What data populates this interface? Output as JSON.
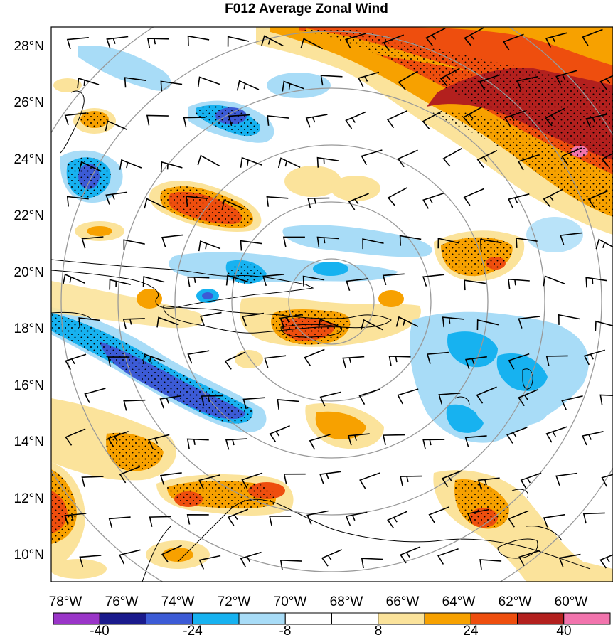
{
  "title": "F012 Average Zonal Wind",
  "lat_labels": [
    "10°N",
    "12°N",
    "14°N",
    "16°N",
    "18°N",
    "20°N",
    "22°N",
    "24°N",
    "26°N",
    "28°N"
  ],
  "lon_labels": [
    "78°W",
    "76°W",
    "74°W",
    "72°W",
    "70°W",
    "68°W",
    "66°W",
    "64°W",
    "62°W",
    "60°W"
  ],
  "extent": {
    "lon_min": -78,
    "lon_max": -58.5,
    "lat_min": 8.9,
    "lat_max": 28.6
  },
  "colorbar": {
    "colors": [
      "#9a35c8",
      "#1a1a8c",
      "#3c5bd6",
      "#17b2f0",
      "#a8dcf7",
      "#ffffff",
      "#ffffff",
      "#fbe39b",
      "#f7a100",
      "#ee4e0e",
      "#b3201e",
      "#f274ad"
    ],
    "tick_labels": [
      "-40",
      "-24",
      "-8",
      "8",
      "24",
      "40"
    ]
  },
  "range_rings_center": {
    "lon": -67.6,
    "lat": 18.5
  },
  "colors": {
    "ring": "#999999",
    "coast": "#000000",
    "barb": "#000000"
  }
}
